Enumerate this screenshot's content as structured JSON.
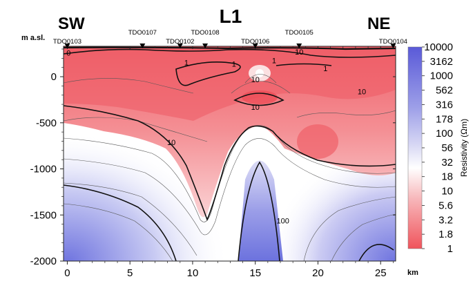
{
  "chart_data": {
    "type": "heatmap",
    "title": "L1",
    "side_labels": {
      "left": "SW",
      "right": "NE"
    },
    "ylabel": "m a.sl.",
    "xunit": "km",
    "xlim": [
      -0.3,
      26.2
    ],
    "ylim": [
      -2000,
      330
    ],
    "xticks": [
      0,
      5,
      10,
      15,
      20,
      25
    ],
    "xtick_labels": [
      "0",
      "5",
      "10",
      "15",
      "20",
      "25"
    ],
    "yticks": [
      0,
      -500,
      -1000,
      -1500,
      -2000
    ],
    "ytick_labels": [
      "0",
      "-500",
      "-1000",
      "-1500",
      "-2000"
    ],
    "colorbar": {
      "label": "Resistivity (Ωm)",
      "scale": "log",
      "ticks": [
        "10000",
        "3162",
        "1000",
        "562",
        "316",
        "178",
        "100",
        "56",
        "32",
        "18",
        "10",
        "5.6",
        "3.2",
        "1.8",
        "1"
      ],
      "low_color": "#f0545c",
      "mid_color": "#ffffff",
      "high_color": "#5a5ad8"
    },
    "stations": [
      {
        "name": "TDO0103",
        "x": 0.0
      },
      {
        "name": "TDO0107",
        "x": 6.0
      },
      {
        "name": "TDO0102",
        "x": 9.0
      },
      {
        "name": "TDO0108",
        "x": 11.0
      },
      {
        "name": "TDO0106",
        "x": 15.0
      },
      {
        "name": "TDO0105",
        "x": 18.5
      },
      {
        "name": "TDO0104",
        "x": 26.0
      }
    ],
    "contour_labels": [
      {
        "text": "0",
        "x": 0.1,
        "y": 260
      },
      {
        "text": "1",
        "x": 9.5,
        "y": 155
      },
      {
        "text": "1",
        "x": 13.3,
        "y": 140
      },
      {
        "text": "1",
        "x": 16.5,
        "y": 175
      },
      {
        "text": "1",
        "x": 20.6,
        "y": 90
      },
      {
        "text": "10",
        "x": 18.5,
        "y": 270
      },
      {
        "text": "10",
        "x": 15.0,
        "y": -30
      },
      {
        "text": "10",
        "x": 23.5,
        "y": -160
      },
      {
        "text": "10",
        "x": 15.0,
        "y": -330
      },
      {
        "text": "10",
        "x": 8.3,
        "y": -710
      },
      {
        "text": "100",
        "x": 17.2,
        "y": -1560
      }
    ]
  }
}
